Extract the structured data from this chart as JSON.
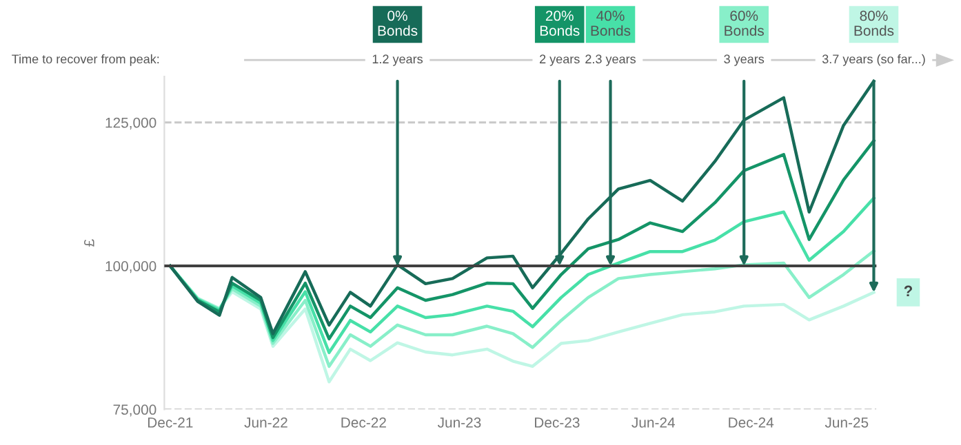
{
  "chart_data": {
    "type": "line",
    "ylabel": "£",
    "x": [
      "2021-12-31",
      "2022-02-21",
      "2022-04-03",
      "2022-04-27",
      "2022-06-20",
      "2022-07-13",
      "2022-09-12",
      "2022-10-27",
      "2022-12-06",
      "2023-01-13",
      "2023-03-05",
      "2023-04-27",
      "2023-06-17",
      "2023-08-21",
      "2023-10-09",
      "2023-11-15",
      "2024-01-08",
      "2024-02-28",
      "2024-04-25",
      "2024-06-24",
      "2024-08-24",
      "2024-10-24",
      "2024-12-18",
      "2025-03-03",
      "2025-04-20",
      "2025-06-24",
      "2025-08-20"
    ],
    "series": [
      {
        "name": "0%\nBonds",
        "color": "#176b58",
        "values": [
          100000,
          93800,
          91400,
          98000,
          94500,
          88200,
          99000,
          89700,
          95400,
          93000,
          100200,
          96900,
          97800,
          101400,
          101700,
          96200,
          102200,
          108200,
          113400,
          114900,
          111300,
          118200,
          125400,
          129300,
          109400,
          124500,
          132200
        ]
      },
      {
        "name": "20%\nBonds",
        "color": "#149467",
        "values": [
          100000,
          94000,
          92000,
          97000,
          94000,
          87500,
          97000,
          87300,
          93000,
          91000,
          96200,
          94000,
          95000,
          97000,
          96900,
          92600,
          98500,
          103000,
          104600,
          107500,
          106000,
          111000,
          116600,
          119400,
          104600,
          115000,
          121800
        ]
      },
      {
        "name": "40%\nBonds",
        "color": "#47e0a8",
        "values": [
          100000,
          94200,
          92300,
          96500,
          93500,
          87000,
          95500,
          84900,
          90500,
          88500,
          93000,
          91000,
          91500,
          93000,
          92100,
          89400,
          94500,
          98500,
          100500,
          102500,
          102500,
          104500,
          107700,
          109400,
          101000,
          106000,
          111800
        ]
      },
      {
        "name": "60%\nBonds",
        "color": "#88efc9",
        "values": [
          100000,
          94300,
          92500,
          96000,
          93000,
          86500,
          94000,
          82500,
          88000,
          86000,
          89700,
          88000,
          88000,
          89500,
          88200,
          85800,
          90500,
          94500,
          97800,
          98500,
          99000,
          99500,
          100200,
          100500,
          94500,
          98500,
          102600
        ]
      },
      {
        "name": "80%\nBonds",
        "color": "#bff6e5",
        "values": [
          100000,
          94400,
          92600,
          95500,
          92500,
          86000,
          92500,
          79800,
          85500,
          83500,
          86600,
          85000,
          84500,
          85500,
          83400,
          82500,
          86500,
          87000,
          88500,
          90000,
          91500,
          92000,
          93000,
          93300,
          90600,
          93000,
          95400
        ]
      }
    ],
    "xlim": [
      "2021-12-20",
      "2025-08-25"
    ],
    "xticks": [
      {
        "value": "2021-12-31",
        "label": "Dec-21"
      },
      {
        "value": "2022-06-30",
        "label": "Jun-22"
      },
      {
        "value": "2022-12-31",
        "label": "Dec-22"
      },
      {
        "value": "2023-06-30",
        "label": "Jun-23"
      },
      {
        "value": "2023-12-31",
        "label": "Dec-23"
      },
      {
        "value": "2024-06-30",
        "label": "Jun-24"
      },
      {
        "value": "2024-12-31",
        "label": "Dec-24"
      },
      {
        "value": "2025-06-30",
        "label": "Jun-25"
      }
    ],
    "ylim": [
      75000,
      133000
    ],
    "yticks": [
      {
        "value": 75000,
        "label": "75,000"
      },
      {
        "value": 100000,
        "label": "100,000"
      },
      {
        "value": 125000,
        "label": "125,000"
      }
    ],
    "ref_lines": [
      {
        "axis": "y",
        "value": 125000,
        "color": "#c8c8c8",
        "line_style": "dashed"
      },
      {
        "axis": "y",
        "value": 100000,
        "color": "#404040"
      },
      {
        "axis": "y",
        "value": 75000,
        "color": "#c8c8c8",
        "line_style": "dashed"
      }
    ],
    "annotations": [
      "Time to recover from peak:",
      {
        "text": "1.2 years",
        "x": "2023-03-05",
        "y": 100000
      },
      {
        "text": "2 years",
        "x": "2024-01-05",
        "y": 100000
      },
      {
        "text": "2.3 years",
        "x": "2024-04-10",
        "y": 100000
      },
      {
        "text": "3 years",
        "x": "2024-12-18",
        "y": 100000
      },
      {
        "text": "3.7 years (so far...)",
        "x": "2025-08-20",
        "y": 95400
      },
      {
        "text": "?",
        "x": "2025-08-20",
        "y": 95400
      }
    ],
    "legend": false
  }
}
